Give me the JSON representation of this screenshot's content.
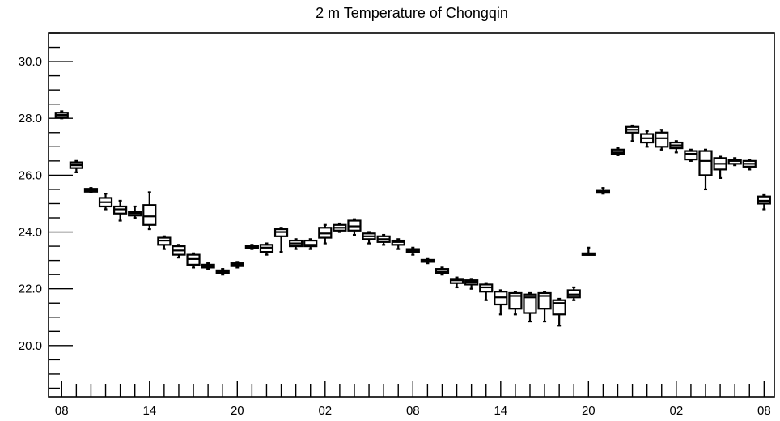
{
  "chart_data": {
    "type": "box",
    "title": "2 m Temperature of Chongqin",
    "xlabel": "",
    "ylabel": "",
    "ylim": [
      18.2,
      31.0
    ],
    "y_ticks": [
      "20.0",
      "22.0",
      "24.0",
      "26.0",
      "28.0",
      "30.0"
    ],
    "x_ticks": [
      "08",
      "14",
      "20",
      "02",
      "08",
      "14",
      "20",
      "02",
      "08"
    ],
    "x_tick_positions": [
      0,
      6,
      12,
      18,
      24,
      30,
      36,
      42,
      48
    ],
    "x_range": [
      -0.9,
      48.7
    ],
    "grid": false,
    "boxes": [
      {
        "x": 0,
        "low": 28.0,
        "q1": 28.05,
        "median": 28.12,
        "q3": 28.2,
        "high": 28.25
      },
      {
        "x": 1,
        "low": 26.1,
        "q1": 26.25,
        "median": 26.35,
        "q3": 26.45,
        "high": 26.5
      },
      {
        "x": 2,
        "low": 25.4,
        "q1": 25.42,
        "median": 25.47,
        "q3": 25.52,
        "high": 25.55
      },
      {
        "x": 3,
        "low": 24.8,
        "q1": 24.9,
        "median": 25.05,
        "q3": 25.2,
        "high": 25.35
      },
      {
        "x": 4,
        "low": 24.4,
        "q1": 24.65,
        "median": 24.8,
        "q3": 24.9,
        "high": 25.1
      },
      {
        "x": 5,
        "low": 24.5,
        "q1": 24.58,
        "median": 24.65,
        "q3": 24.7,
        "high": 24.9
      },
      {
        "x": 6,
        "low": 24.1,
        "q1": 24.25,
        "median": 24.55,
        "q3": 24.95,
        "high": 25.4
      },
      {
        "x": 7,
        "low": 23.4,
        "q1": 23.55,
        "median": 23.7,
        "q3": 23.8,
        "high": 23.85
      },
      {
        "x": 8,
        "low": 23.1,
        "q1": 23.2,
        "median": 23.35,
        "q3": 23.5,
        "high": 23.55
      },
      {
        "x": 9,
        "low": 22.75,
        "q1": 22.85,
        "median": 23.05,
        "q3": 23.2,
        "high": 23.25
      },
      {
        "x": 10,
        "low": 22.7,
        "q1": 22.75,
        "median": 22.8,
        "q3": 22.85,
        "high": 22.9
      },
      {
        "x": 11,
        "low": 22.5,
        "q1": 22.55,
        "median": 22.6,
        "q3": 22.65,
        "high": 22.7
      },
      {
        "x": 12,
        "low": 22.75,
        "q1": 22.8,
        "median": 22.85,
        "q3": 22.9,
        "high": 22.95
      },
      {
        "x": 13,
        "low": 23.4,
        "q1": 23.42,
        "median": 23.47,
        "q3": 23.5,
        "high": 23.55
      },
      {
        "x": 14,
        "low": 23.2,
        "q1": 23.3,
        "median": 23.45,
        "q3": 23.55,
        "high": 23.6
      },
      {
        "x": 15,
        "low": 23.3,
        "q1": 23.85,
        "median": 24.0,
        "q3": 24.1,
        "high": 24.15
      },
      {
        "x": 16,
        "low": 23.4,
        "q1": 23.5,
        "median": 23.6,
        "q3": 23.7,
        "high": 23.75
      },
      {
        "x": 17,
        "low": 23.4,
        "q1": 23.5,
        "median": 23.55,
        "q3": 23.7,
        "high": 23.75
      },
      {
        "x": 18,
        "low": 23.6,
        "q1": 23.8,
        "median": 23.95,
        "q3": 24.15,
        "high": 24.25
      },
      {
        "x": 19,
        "low": 24.0,
        "q1": 24.05,
        "median": 24.15,
        "q3": 24.25,
        "high": 24.3
      },
      {
        "x": 20,
        "low": 23.9,
        "q1": 24.05,
        "median": 24.2,
        "q3": 24.4,
        "high": 24.45
      },
      {
        "x": 21,
        "low": 23.6,
        "q1": 23.75,
        "median": 23.85,
        "q3": 23.95,
        "high": 24.0
      },
      {
        "x": 22,
        "low": 23.55,
        "q1": 23.65,
        "median": 23.75,
        "q3": 23.85,
        "high": 23.9
      },
      {
        "x": 23,
        "low": 23.4,
        "q1": 23.55,
        "median": 23.65,
        "q3": 23.7,
        "high": 23.75
      },
      {
        "x": 24,
        "low": 23.2,
        "q1": 23.3,
        "median": 23.35,
        "q3": 23.4,
        "high": 23.45
      },
      {
        "x": 25,
        "low": 22.9,
        "q1": 22.95,
        "median": 23.0,
        "q3": 23.02,
        "high": 23.05
      },
      {
        "x": 26,
        "low": 22.5,
        "q1": 22.55,
        "median": 22.6,
        "q3": 22.7,
        "high": 22.75
      },
      {
        "x": 27,
        "low": 22.05,
        "q1": 22.2,
        "median": 22.3,
        "q3": 22.35,
        "high": 22.4
      },
      {
        "x": 28,
        "low": 22.0,
        "q1": 22.15,
        "median": 22.25,
        "q3": 22.3,
        "high": 22.35
      },
      {
        "x": 29,
        "low": 21.6,
        "q1": 21.9,
        "median": 22.05,
        "q3": 22.15,
        "high": 22.2
      },
      {
        "x": 30,
        "low": 21.1,
        "q1": 21.45,
        "median": 21.7,
        "q3": 21.9,
        "high": 21.95
      },
      {
        "x": 31,
        "low": 21.1,
        "q1": 21.3,
        "median": 21.75,
        "q3": 21.85,
        "high": 21.9
      },
      {
        "x": 32,
        "low": 20.85,
        "q1": 21.15,
        "median": 21.7,
        "q3": 21.8,
        "high": 21.85
      },
      {
        "x": 33,
        "low": 20.85,
        "q1": 21.3,
        "median": 21.75,
        "q3": 21.85,
        "high": 21.9
      },
      {
        "x": 34,
        "low": 20.7,
        "q1": 21.1,
        "median": 21.5,
        "q3": 21.6,
        "high": 21.65
      },
      {
        "x": 35,
        "low": 21.6,
        "q1": 21.7,
        "median": 21.8,
        "q3": 21.95,
        "high": 22.05
      },
      {
        "x": 36,
        "low": 23.2,
        "q1": 23.2,
        "median": 23.22,
        "q3": 23.25,
        "high": 23.45
      },
      {
        "x": 37,
        "low": 25.35,
        "q1": 25.38,
        "median": 25.42,
        "q3": 25.45,
        "high": 25.55
      },
      {
        "x": 38,
        "low": 26.7,
        "q1": 26.75,
        "median": 26.8,
        "q3": 26.9,
        "high": 26.95
      },
      {
        "x": 39,
        "low": 27.2,
        "q1": 27.5,
        "median": 27.6,
        "q3": 27.7,
        "high": 27.75
      },
      {
        "x": 40,
        "low": 27.0,
        "q1": 27.15,
        "median": 27.3,
        "q3": 27.45,
        "high": 27.55
      },
      {
        "x": 41,
        "low": 26.9,
        "q1": 27.0,
        "median": 27.3,
        "q3": 27.5,
        "high": 27.6
      },
      {
        "x": 42,
        "low": 26.8,
        "q1": 26.95,
        "median": 27.05,
        "q3": 27.15,
        "high": 27.2
      },
      {
        "x": 43,
        "low": 26.5,
        "q1": 26.55,
        "median": 26.75,
        "q3": 26.85,
        "high": 26.9
      },
      {
        "x": 44,
        "low": 25.5,
        "q1": 26.0,
        "median": 26.5,
        "q3": 26.85,
        "high": 26.9
      },
      {
        "x": 45,
        "low": 25.9,
        "q1": 26.2,
        "median": 26.4,
        "q3": 26.6,
        "high": 26.65
      },
      {
        "x": 46,
        "low": 26.35,
        "q1": 26.4,
        "median": 26.5,
        "q3": 26.55,
        "high": 26.6
      },
      {
        "x": 47,
        "low": 26.2,
        "q1": 26.3,
        "median": 26.4,
        "q3": 26.5,
        "high": 26.55
      },
      {
        "x": 48,
        "low": 24.8,
        "q1": 25.0,
        "median": 25.1,
        "q3": 25.25,
        "high": 25.3
      }
    ]
  }
}
